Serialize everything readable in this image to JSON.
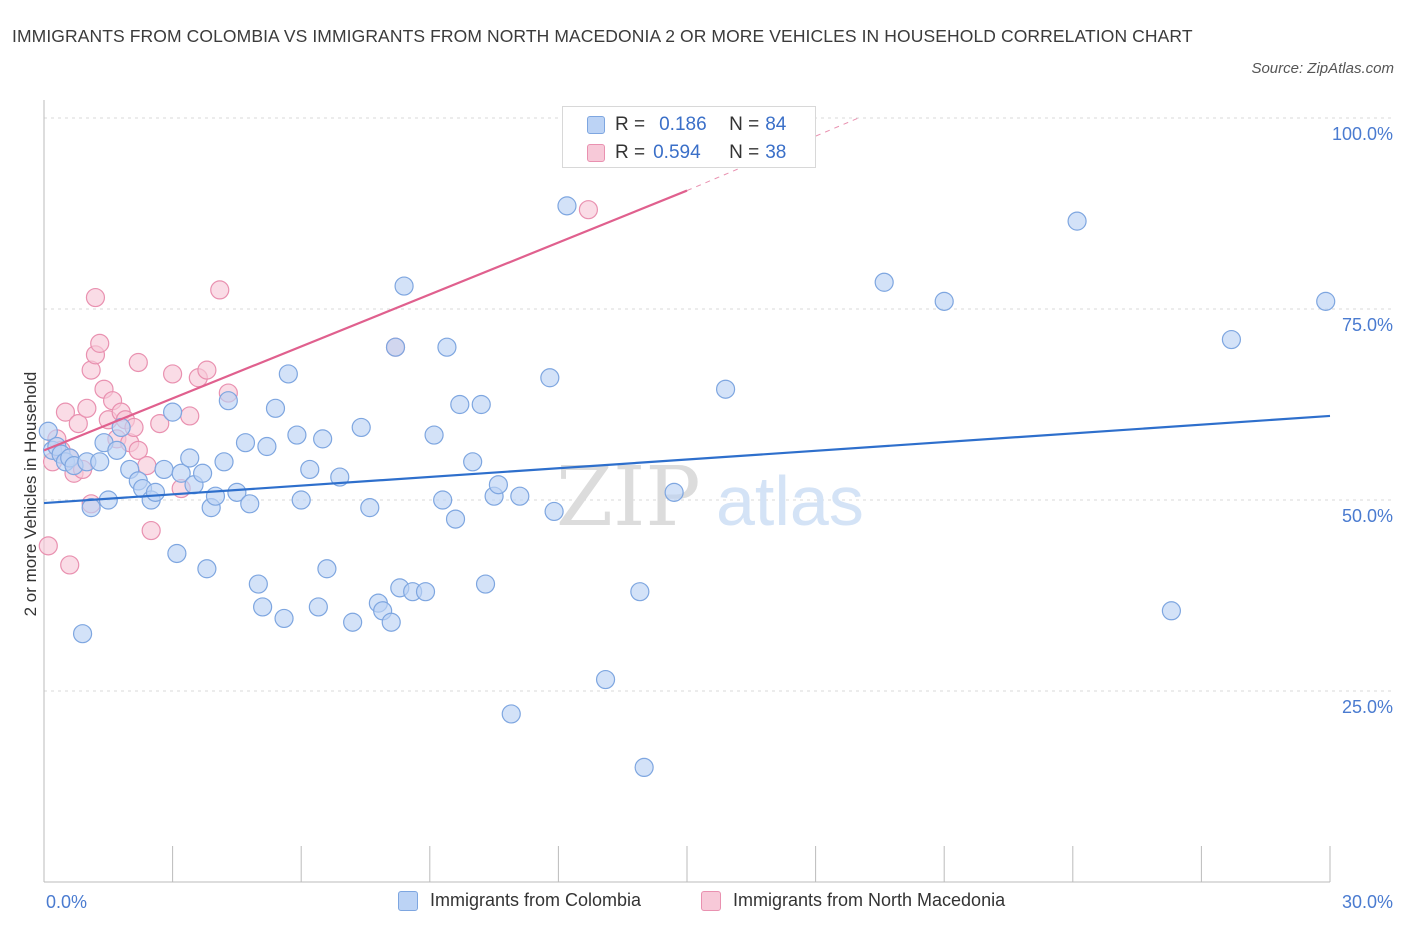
{
  "title": "IMMIGRANTS FROM COLOMBIA VS IMMIGRANTS FROM NORTH MACEDONIA 2 OR MORE VEHICLES IN HOUSEHOLD CORRELATION CHART",
  "source": "Source: ZipAtlas.com",
  "watermark": {
    "zip": "ZIP",
    "atlas": "atlas"
  },
  "colors": {
    "blue_fill": "#bcd3f5",
    "blue_stroke": "#7ea6e0",
    "blue_line": "#2e6fcc",
    "pink_fill": "#f7c9d8",
    "pink_stroke": "#e991b0",
    "pink_line": "#e0608e",
    "grid": "#d9d9d9",
    "tick_label": "#4a7bd0"
  },
  "legend": {
    "rows": [
      {
        "r_label": "R =",
        "r_value": "0.186",
        "n_label": "N =",
        "n_value": "84"
      },
      {
        "r_label": "R =",
        "r_value": "0.594",
        "n_label": "N =",
        "n_value": "38"
      }
    ]
  },
  "chart_data": {
    "type": "scatter",
    "title": "IMMIGRANTS FROM COLOMBIA VS IMMIGRANTS FROM NORTH MACEDONIA 2 OR MORE VEHICLES IN HOUSEHOLD CORRELATION CHART",
    "xlabel": "",
    "ylabel": "2 or more Vehicles in Household",
    "xlim": [
      0,
      30
    ],
    "ylim": [
      0,
      100
    ],
    "x_tick_labels": [
      "0.0%",
      "30.0%"
    ],
    "y_tick_labels": [
      "25.0%",
      "50.0%",
      "75.0%",
      "100.0%"
    ],
    "y_ticks": [
      25,
      50,
      75,
      100
    ],
    "grid": true,
    "legend_position": "bottom",
    "series": [
      {
        "name": "Immigrants from Colombia",
        "color": "#7ea6e0",
        "trend": {
          "x": [
            0,
            30
          ],
          "y": [
            49.6,
            61.0
          ]
        },
        "points": [
          [
            0.1,
            59.0
          ],
          [
            0.2,
            56.5
          ],
          [
            0.3,
            57.0
          ],
          [
            0.4,
            56.0
          ],
          [
            0.5,
            55.0
          ],
          [
            0.6,
            55.5
          ],
          [
            0.7,
            54.5
          ],
          [
            0.9,
            32.5
          ],
          [
            1.0,
            55.0
          ],
          [
            1.1,
            49.0
          ],
          [
            1.3,
            55.0
          ],
          [
            1.4,
            57.5
          ],
          [
            1.5,
            50.0
          ],
          [
            1.7,
            56.5
          ],
          [
            1.8,
            59.5
          ],
          [
            2.0,
            54.0
          ],
          [
            2.2,
            52.5
          ],
          [
            2.3,
            51.5
          ],
          [
            2.5,
            50.0
          ],
          [
            2.6,
            51.0
          ],
          [
            2.8,
            54.0
          ],
          [
            3.0,
            61.5
          ],
          [
            3.1,
            43.0
          ],
          [
            3.2,
            53.5
          ],
          [
            3.4,
            55.5
          ],
          [
            3.5,
            52.0
          ],
          [
            3.7,
            53.5
          ],
          [
            3.8,
            41.0
          ],
          [
            3.9,
            49.0
          ],
          [
            4.0,
            50.5
          ],
          [
            4.2,
            55.0
          ],
          [
            4.3,
            63.0
          ],
          [
            4.5,
            51.0
          ],
          [
            4.7,
            57.5
          ],
          [
            4.8,
            49.5
          ],
          [
            5.0,
            39.0
          ],
          [
            5.1,
            36.0
          ],
          [
            5.2,
            57.0
          ],
          [
            5.4,
            62.0
          ],
          [
            5.6,
            34.5
          ],
          [
            5.7,
            66.5
          ],
          [
            5.9,
            58.5
          ],
          [
            6.0,
            50.0
          ],
          [
            6.2,
            54.0
          ],
          [
            6.4,
            36.0
          ],
          [
            6.5,
            58.0
          ],
          [
            6.6,
            41.0
          ],
          [
            6.9,
            53.0
          ],
          [
            7.2,
            34.0
          ],
          [
            7.4,
            59.5
          ],
          [
            7.6,
            49.0
          ],
          [
            7.8,
            36.5
          ],
          [
            7.9,
            35.5
          ],
          [
            8.1,
            34.0
          ],
          [
            8.2,
            70.0
          ],
          [
            8.3,
            38.5
          ],
          [
            8.4,
            78.0
          ],
          [
            8.6,
            38.0
          ],
          [
            8.9,
            38.0
          ],
          [
            9.1,
            58.5
          ],
          [
            9.3,
            50.0
          ],
          [
            9.4,
            70.0
          ],
          [
            9.6,
            47.5
          ],
          [
            9.7,
            62.5
          ],
          [
            10.0,
            55.0
          ],
          [
            10.2,
            62.5
          ],
          [
            10.3,
            39.0
          ],
          [
            10.5,
            50.5
          ],
          [
            10.6,
            52.0
          ],
          [
            10.9,
            22.0
          ],
          [
            11.1,
            50.5
          ],
          [
            11.8,
            66.0
          ],
          [
            11.9,
            48.5
          ],
          [
            12.2,
            88.5
          ],
          [
            13.1,
            26.5
          ],
          [
            13.9,
            38.0
          ],
          [
            14.0,
            15.0
          ],
          [
            14.7,
            51.0
          ],
          [
            15.9,
            64.5
          ],
          [
            19.6,
            78.5
          ],
          [
            21.0,
            76.0
          ],
          [
            24.1,
            86.5
          ],
          [
            26.3,
            35.5
          ],
          [
            27.7,
            71.0
          ],
          [
            29.9,
            76.0
          ]
        ]
      },
      {
        "name": "Immigrants from North Macedonia",
        "color": "#e991b0",
        "trend": {
          "x": [
            0,
            15
          ],
          "y": [
            56.5,
            90.5
          ]
        },
        "trend_dashed": {
          "x": [
            15,
            19
          ],
          "y": [
            90.5,
            100
          ]
        },
        "points": [
          [
            0.1,
            44.0
          ],
          [
            0.2,
            55.0
          ],
          [
            0.3,
            58.0
          ],
          [
            0.4,
            56.5
          ],
          [
            0.5,
            61.5
          ],
          [
            0.6,
            55.5
          ],
          [
            0.7,
            53.5
          ],
          [
            0.8,
            60.0
          ],
          [
            0.9,
            54.0
          ],
          [
            1.0,
            62.0
          ],
          [
            1.1,
            67.0
          ],
          [
            1.2,
            69.0
          ],
          [
            1.3,
            70.5
          ],
          [
            1.4,
            64.5
          ],
          [
            1.5,
            60.5
          ],
          [
            1.6,
            63.0
          ],
          [
            1.7,
            58.0
          ],
          [
            1.8,
            61.5
          ],
          [
            1.9,
            60.5
          ],
          [
            2.0,
            57.5
          ],
          [
            2.1,
            59.5
          ],
          [
            2.2,
            56.5
          ],
          [
            2.4,
            54.5
          ],
          [
            2.5,
            46.0
          ],
          [
            2.7,
            60.0
          ],
          [
            3.0,
            66.5
          ],
          [
            3.2,
            51.5
          ],
          [
            3.4,
            61.0
          ],
          [
            3.6,
            66.0
          ],
          [
            3.8,
            67.0
          ],
          [
            4.1,
            77.5
          ],
          [
            4.3,
            64.0
          ],
          [
            0.6,
            41.5
          ],
          [
            1.1,
            49.5
          ],
          [
            1.2,
            76.5
          ],
          [
            2.2,
            68.0
          ],
          [
            8.2,
            70.0
          ],
          [
            12.7,
            88.0
          ]
        ]
      }
    ]
  },
  "bottom_legend": [
    "Immigrants from Colombia",
    "Immigrants from North Macedonia"
  ]
}
